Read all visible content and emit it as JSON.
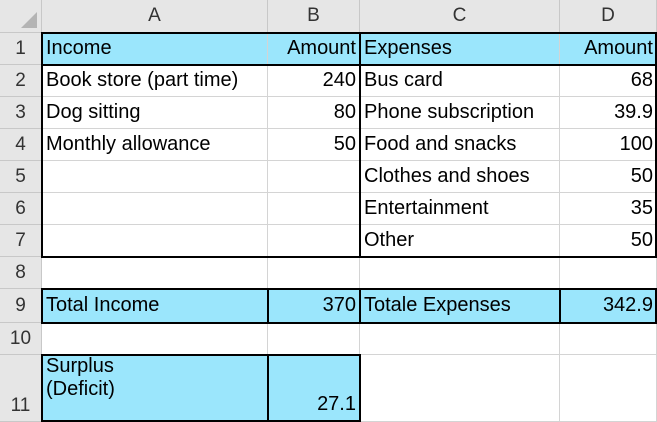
{
  "columns": [
    "A",
    "B",
    "C",
    "D"
  ],
  "rows": [
    "1",
    "2",
    "3",
    "4",
    "5",
    "6",
    "7",
    "8",
    "9",
    "10",
    "11"
  ],
  "colors": {
    "highlight": "#9be6fc",
    "header_bg": "#e6e6e6"
  },
  "header": {
    "income": "Income",
    "amount_b": "Amount",
    "expenses": "Expenses",
    "amount_d": "Amount"
  },
  "income_items": [
    {
      "label": "Book store (part time)",
      "amount": "240"
    },
    {
      "label": "Dog sitting",
      "amount": "80"
    },
    {
      "label": "Monthly allowance",
      "amount": "50"
    }
  ],
  "expense_items": [
    {
      "label": "Bus card",
      "amount": "68"
    },
    {
      "label": "Phone subscription",
      "amount": "39.9"
    },
    {
      "label": "Food and snacks",
      "amount": "100"
    },
    {
      "label": "Clothes and shoes",
      "amount": "50"
    },
    {
      "label": "Entertainment",
      "amount": "35"
    },
    {
      "label": "Other",
      "amount": "50"
    }
  ],
  "totals": {
    "income_label": "Total Income",
    "income_value": "370",
    "expenses_label": "Totale Expenses",
    "expenses_value": "342.9"
  },
  "surplus": {
    "label_line1": "Surplus",
    "label_line2": "(Deficit)",
    "value": "27.1"
  }
}
